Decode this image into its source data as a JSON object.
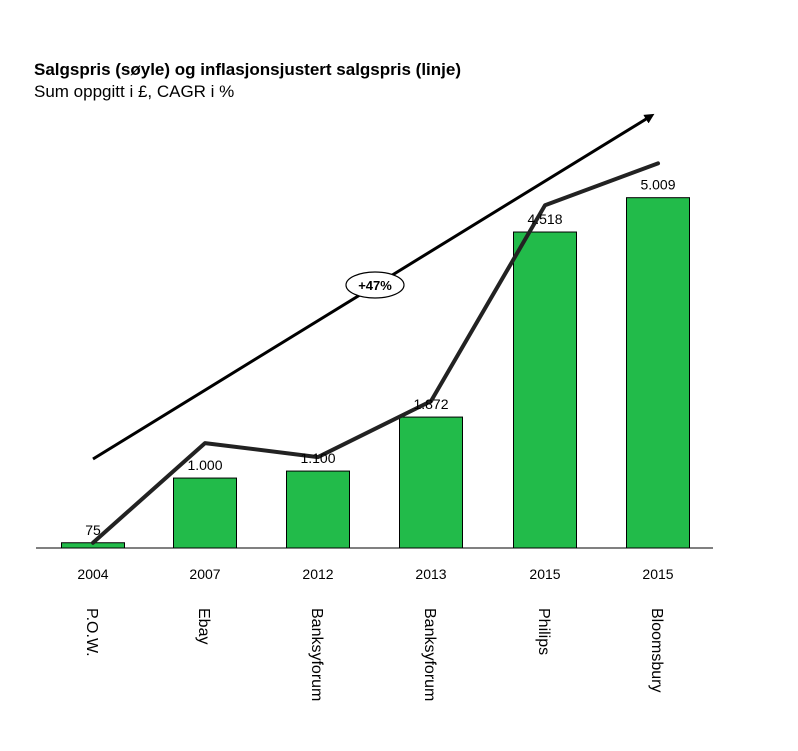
{
  "chart_data": {
    "type": "bar",
    "title": "Salgspris (søyle) og inflasjonsjustert salgspris (linje)",
    "subtitle": "Sum oppgitt i £, CAGR i %",
    "categories": [
      "2004",
      "2007",
      "2012",
      "2013",
      "2015",
      "2015"
    ],
    "sellers": [
      "P.O.W.",
      "Ebay",
      "Banksyforum",
      "Banksyforum",
      "Philips",
      "Bloomsbury"
    ],
    "values": [
      75,
      1000,
      1100,
      1872,
      4518,
      5009
    ],
    "value_labels": [
      "75",
      "1.000",
      "1.100",
      "1.872",
      "4.518",
      "5.009"
    ],
    "line_values": [
      75,
      1500,
      1300,
      2100,
      4900,
      5500
    ],
    "cagr_label": "+47%",
    "ylim": [
      0,
      5600
    ],
    "bar_color": "#22BB4A",
    "line_color": "#222222",
    "grid": false
  }
}
